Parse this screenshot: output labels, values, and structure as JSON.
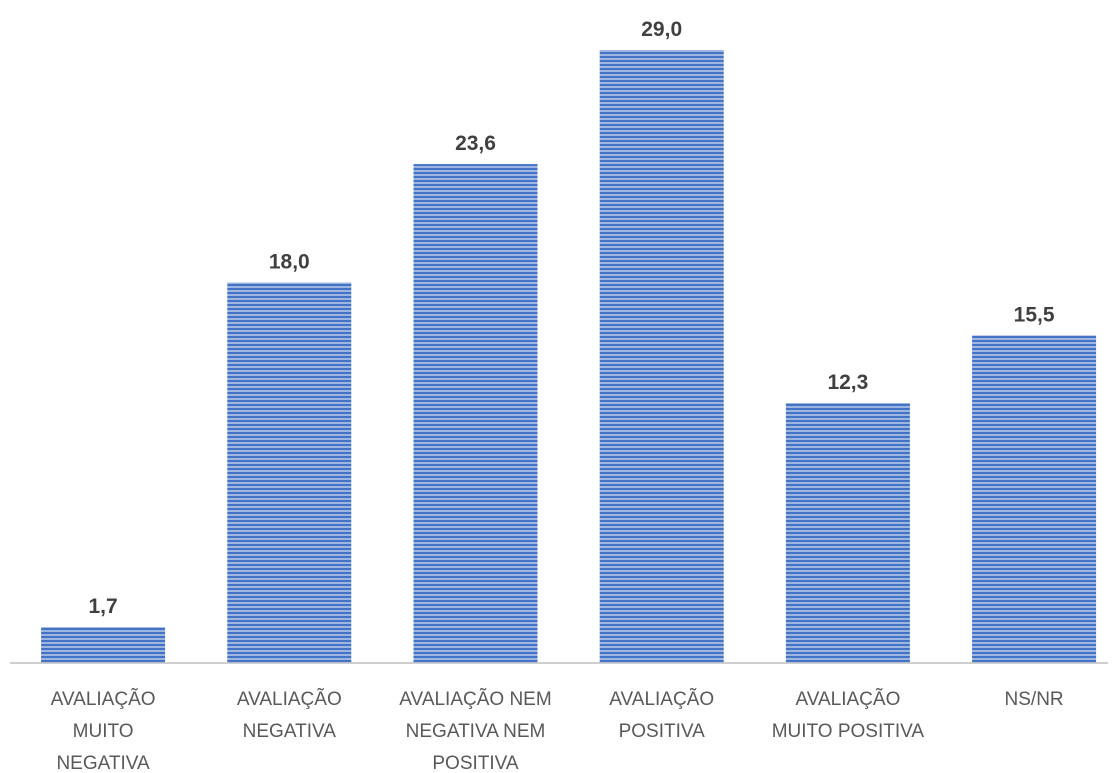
{
  "chart_data": {
    "type": "bar",
    "categories": [
      "AVALIAÇÃO MUITO NEGATIVA",
      "AVALIAÇÃO NEGATIVA",
      "AVALIAÇÃO NEM NEGATIVA NEM POSITIVA",
      "AVALIAÇÃO POSITIVA",
      "AVALIAÇÃO MUITO POSITIVA",
      "NS/NR"
    ],
    "category_lines": [
      [
        "AVALIAÇÃO",
        "MUITO",
        "NEGATIVA"
      ],
      [
        "AVALIAÇÃO",
        "NEGATIVA"
      ],
      [
        "AVALIAÇÃO NEM",
        "NEGATIVA NEM",
        "POSITIVA"
      ],
      [
        "AVALIAÇÃO",
        "POSITIVA"
      ],
      [
        "AVALIAÇÃO",
        "MUITO POSITIVA"
      ],
      [
        "NS/NR"
      ]
    ],
    "values": [
      1.7,
      18.0,
      23.6,
      29.0,
      12.3,
      15.5
    ],
    "value_labels": [
      "1,7",
      "18,0",
      "23,6",
      "29,0",
      "12,3",
      "15,5"
    ],
    "title": "",
    "xlabel": "",
    "ylabel": "",
    "ylim": [
      0,
      29.0
    ],
    "grid": false,
    "legend": "none",
    "colors": {
      "bar_fill": "#4472C4",
      "bar_stripe_light": "#9DB5E1",
      "axis_line": "#BFBFBF",
      "value_text": "#404040",
      "category_text": "#595959"
    }
  }
}
